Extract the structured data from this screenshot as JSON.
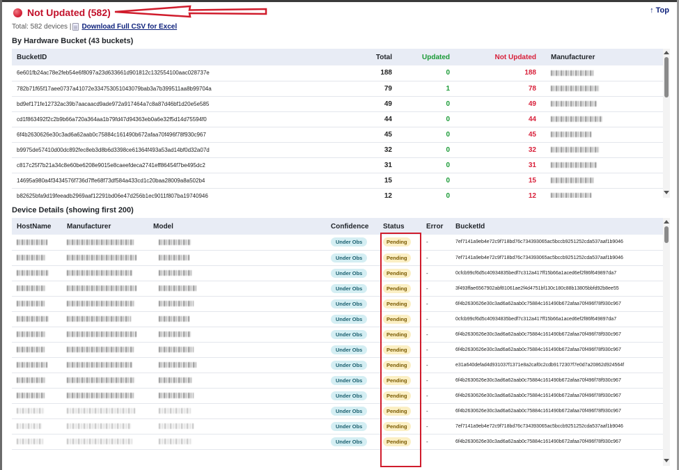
{
  "header": {
    "title": "Not Updated (582)",
    "top_link": "↑ Top"
  },
  "summary": {
    "total_text": "Total: 582 devices |",
    "csv_link": "Download Full CSV for Excel"
  },
  "buckets": {
    "title": "By Hardware Bucket (43 buckets)",
    "columns": {
      "bucket_id": "BucketID",
      "total": "Total",
      "updated": "Updated",
      "not_updated": "Not Updated",
      "manufacturer": "Manufacturer"
    },
    "rows": [
      {
        "bucket_id": "6e601fb24ac78e2feb54e6f8097a23d633661d901812c132554100aac028737e",
        "total": "188",
        "updated": "0",
        "not_updated": "188"
      },
      {
        "bucket_id": "782b71f65f17aee0737a41072e334753051043079bab3a7b399511aa8b99704a",
        "total": "79",
        "updated": "1",
        "not_updated": "78"
      },
      {
        "bucket_id": "bd9ef171fe12732ac39b7aacaacd9ade972a917464a7c8a87d46bf1d20e5e585",
        "total": "49",
        "updated": "0",
        "not_updated": "49"
      },
      {
        "bucket_id": "cd1f863492f2c2b9b66a720a364aa1b79fd47d94363eb0a6e32f5d14d75594f0",
        "total": "44",
        "updated": "0",
        "not_updated": "44"
      },
      {
        "bucket_id": "6f4b2630626e30c3ad6a62aab0c75884c161490b672afaa70f496f78f930c967",
        "total": "45",
        "updated": "0",
        "not_updated": "45"
      },
      {
        "bucket_id": "b9975de57410d00dc892fec8eb3d8b6d3398ce61364f493a53ad14bf0d32a07d",
        "total": "32",
        "updated": "0",
        "not_updated": "32"
      },
      {
        "bucket_id": "c817c25f7b21a34c8e60be6208e9015e8caeefdeca2741eff86454f7be495dc2",
        "total": "31",
        "updated": "0",
        "not_updated": "31"
      },
      {
        "bucket_id": "14695a980a4f3434576f736d7ffe68f73df584a433cd1c20baa28009a8a502b4",
        "total": "15",
        "updated": "0",
        "not_updated": "15"
      },
      {
        "bucket_id": "b82625bfa9d19feeadb2969aaf12291bd06e47d256b1ec9011f807ba19740946",
        "total": "12",
        "updated": "0",
        "not_updated": "12"
      }
    ]
  },
  "devices": {
    "title": "Device Details (showing first 200)",
    "columns": {
      "hostname": "HostName",
      "manufacturer": "Manufacturer",
      "model": "Model",
      "confidence": "Confidence",
      "status": "Status",
      "error": "Error",
      "bucket_id": "BucketId"
    },
    "rows": [
      {
        "confidence": "Under Obs",
        "status": "Pending",
        "error": "-",
        "bucket_id": "7ef7141a9eb4e72c9f718bd76c734393065ac5bccb9251252cda537aaf1b9046"
      },
      {
        "confidence": "Under Obs",
        "status": "Pending",
        "error": "-",
        "bucket_id": "7ef7141a9eb4e72c9f718bd76c734393065ac5bccb9251252cda537aaf1b9046"
      },
      {
        "confidence": "Under Obs",
        "status": "Pending",
        "error": "-",
        "bucket_id": "0cfcb99cf6d5c40934835bedf7c312a417ff15b66a1aced6ef2f86f649897da7"
      },
      {
        "confidence": "Under Obs",
        "status": "Pending",
        "error": "-",
        "bucket_id": "3f493ffae6567902abf81061ae2f4d4751bf130c180c88b13805bbfd92b8ee55"
      },
      {
        "confidence": "Under Obs",
        "status": "Pending",
        "error": "-",
        "bucket_id": "6f4b2630626e30c3ad6a62aab0c75884c161490b672afaa70f496f78f930c967"
      },
      {
        "confidence": "Under Obs",
        "status": "Pending",
        "error": "-",
        "bucket_id": "0cfcb99cf6d5c40934835bedf7c312a417ff15b66a1aced6ef2f86f649897da7"
      },
      {
        "confidence": "Under Obs",
        "status": "Pending",
        "error": "-",
        "bucket_id": "6f4b2630626e30c3ad6a62aab0c75884c161490b672afaa70f496f78f930c967"
      },
      {
        "confidence": "Under Obs",
        "status": "Pending",
        "error": "-",
        "bucket_id": "6f4b2630626e30c3ad6a62aab0c75884c161490b672afaa70f496f78f930c967"
      },
      {
        "confidence": "Under Obs",
        "status": "Pending",
        "error": "-",
        "bucket_id": "e31a640defad4d931037f1371e8a2caf0c2cdb9172307f7e0d7a20862d924564f"
      },
      {
        "confidence": "Under Obs",
        "status": "Pending",
        "error": "-",
        "bucket_id": "6f4b2630626e30c3ad6a62aab0c75884c161490b672afaa70f496f78f930c967"
      },
      {
        "confidence": "Under Obs",
        "status": "Pending",
        "error": "-",
        "bucket_id": "6f4b2630626e30c3ad6a62aab0c75884c161490b672afaa70f496f78f930c967"
      },
      {
        "confidence": "Under Obs",
        "status": "Pending",
        "error": "-",
        "bucket_id": "6f4b2630626e30c3ad6a62aab0c75884c161490b672afaa70f496f78f930c967"
      },
      {
        "confidence": "Under Obs",
        "status": "Pending",
        "error": "-",
        "bucket_id": "7ef7141a9eb4e72c9f718bd76c734393065ac5bccb9251252cda537aaf1b9046"
      },
      {
        "confidence": "Under Obs",
        "status": "Pending",
        "error": "-",
        "bucket_id": "6f4b2630626e30c3ad6a62aab0c75884c161490b672afaa70f496f78f930c967"
      }
    ]
  },
  "colors": {
    "title_red": "#c2102a",
    "updated_green": "#1a9a36",
    "not_updated_red": "#d8203a",
    "link_blue": "#0b1f7a",
    "header_bg": "#e8ecf5",
    "annotation_red": "#d01c2c"
  },
  "icons": {
    "status_dot": "red-circle-icon",
    "csv": "document-icon",
    "annotation_arrow": "red-arrow-annotation"
  }
}
